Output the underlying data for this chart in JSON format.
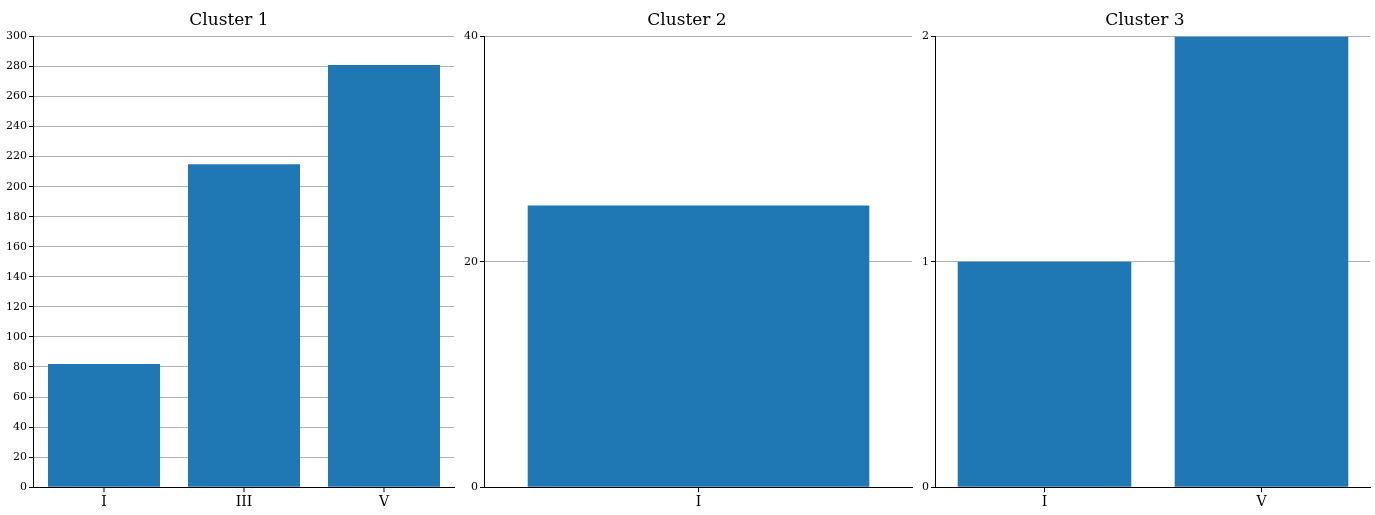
{
  "chart_data": [
    {
      "type": "bar",
      "title": "Cluster 1",
      "categories": [
        "I",
        "III",
        "V"
      ],
      "values": [
        82,
        215,
        281
      ],
      "color": "#1f77b4",
      "ylim": [
        0,
        300
      ],
      "yticks": [
        0,
        20,
        40,
        60,
        80,
        100,
        120,
        140,
        160,
        180,
        200,
        220,
        240,
        260,
        280,
        300
      ],
      "grid": "y"
    },
    {
      "type": "bar",
      "title": "Cluster 2",
      "categories": [
        "I"
      ],
      "values": [
        25
      ],
      "color": "#1f77b4",
      "ylim": [
        0,
        40
      ],
      "yticks": [
        0,
        20,
        40
      ],
      "grid": "y"
    },
    {
      "type": "bar",
      "title": "Cluster 3",
      "categories": [
        "I",
        "V"
      ],
      "values": [
        1,
        2
      ],
      "color": "#1f77b4",
      "ylim": [
        0,
        2
      ],
      "yticks": [
        0,
        1,
        2
      ],
      "grid": "y"
    }
  ]
}
